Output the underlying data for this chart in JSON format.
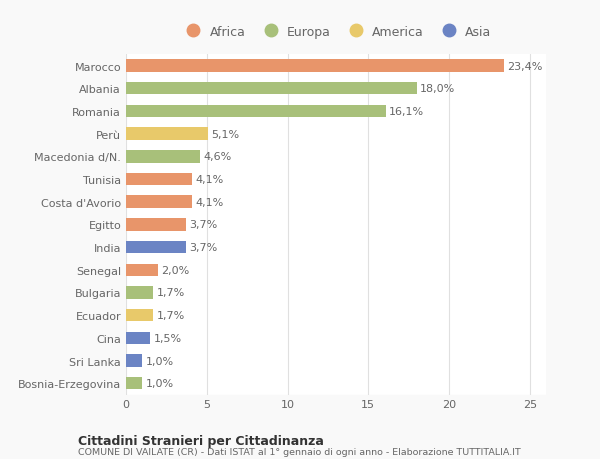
{
  "categories": [
    "Bosnia-Erzegovina",
    "Sri Lanka",
    "Cina",
    "Ecuador",
    "Bulgaria",
    "Senegal",
    "India",
    "Egitto",
    "Costa d'Avorio",
    "Tunisia",
    "Macedonia d/N.",
    "Perù",
    "Romania",
    "Albania",
    "Marocco"
  ],
  "values": [
    1.0,
    1.0,
    1.5,
    1.7,
    1.7,
    2.0,
    3.7,
    3.7,
    4.1,
    4.1,
    4.6,
    5.1,
    16.1,
    18.0,
    23.4
  ],
  "labels": [
    "1,0%",
    "1,0%",
    "1,5%",
    "1,7%",
    "1,7%",
    "2,0%",
    "3,7%",
    "3,7%",
    "4,1%",
    "4,1%",
    "4,6%",
    "5,1%",
    "16,1%",
    "18,0%",
    "23,4%"
  ],
  "colors": [
    "#a8c07a",
    "#6b84c4",
    "#6b84c4",
    "#e8c96a",
    "#a8c07a",
    "#e8956a",
    "#6b84c4",
    "#e8956a",
    "#e8956a",
    "#e8956a",
    "#a8c07a",
    "#e8c96a",
    "#a8c07a",
    "#a8c07a",
    "#e8956a"
  ],
  "continent_colors": {
    "Africa": "#e8956a",
    "Europa": "#a8c07a",
    "America": "#e8c96a",
    "Asia": "#6b84c4"
  },
  "title_bold": "Cittadini Stranieri per Cittadinanza",
  "subtitle": "COMUNE DI VAILATE (CR) - Dati ISTAT al 1° gennaio di ogni anno - Elaborazione TUTTITALIA.IT",
  "xlim": [
    0,
    26
  ],
  "xticks": [
    0,
    5,
    10,
    15,
    20,
    25
  ],
  "bg_color": "#f9f9f9",
  "bar_bg_color": "#ffffff",
  "grid_color": "#e0e0e0",
  "label_fontsize": 8,
  "tick_fontsize": 8,
  "legend_fontsize": 9
}
